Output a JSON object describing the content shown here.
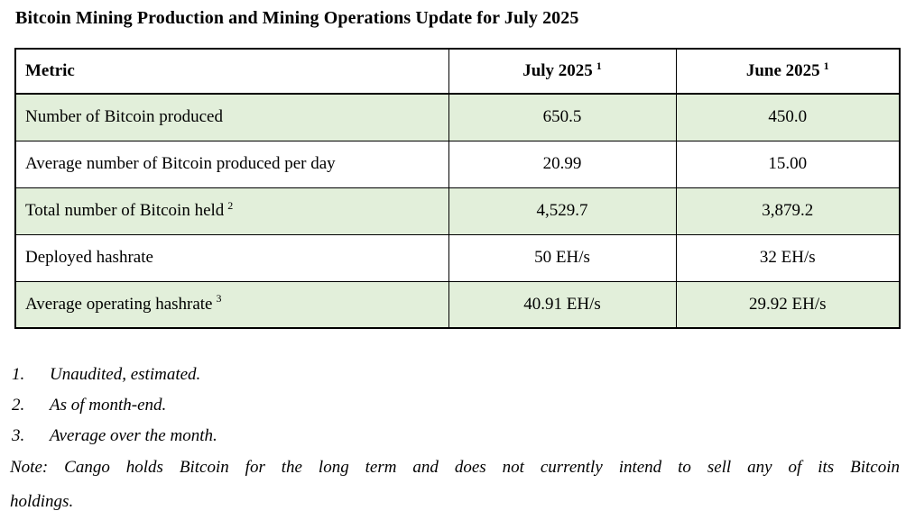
{
  "page": {
    "title": "Bitcoin Mining Production and Mining Operations Update for July 2025"
  },
  "table": {
    "headers": {
      "metric": "Metric",
      "july": {
        "text": "July 2025",
        "sup": "1"
      },
      "june": {
        "text": "June 2025",
        "sup": "1"
      }
    },
    "rows": [
      {
        "metric": "Number of Bitcoin produced",
        "july": "650.5",
        "june": "450.0"
      },
      {
        "metric": "Average number of Bitcoin produced per day",
        "july": "20.99",
        "june": "15.00"
      },
      {
        "metric": "Total number of Bitcoin held",
        "metric_sup": "2",
        "july": "4,529.7",
        "june": "3,879.2"
      },
      {
        "metric": "Deployed hashrate",
        "july": "50 EH/s",
        "june": "32 EH/s"
      },
      {
        "metric": "Average operating hashrate",
        "metric_sup": "3",
        "july": "40.91 EH/s",
        "june": "29.92 EH/s"
      }
    ]
  },
  "footnotes": {
    "items": [
      {
        "number": "1.",
        "text": "Unaudited, estimated."
      },
      {
        "number": "2.",
        "text": "As of month-end."
      },
      {
        "number": "3.",
        "text": "Average over the month."
      }
    ],
    "note_line1": "Note: Cango holds Bitcoin for the long term and does not currently intend to sell any of its Bitcoin",
    "note_line2": "holdings."
  },
  "colors": {
    "row_highlight": "#e2efda",
    "border": "#000000",
    "background": "#ffffff"
  }
}
